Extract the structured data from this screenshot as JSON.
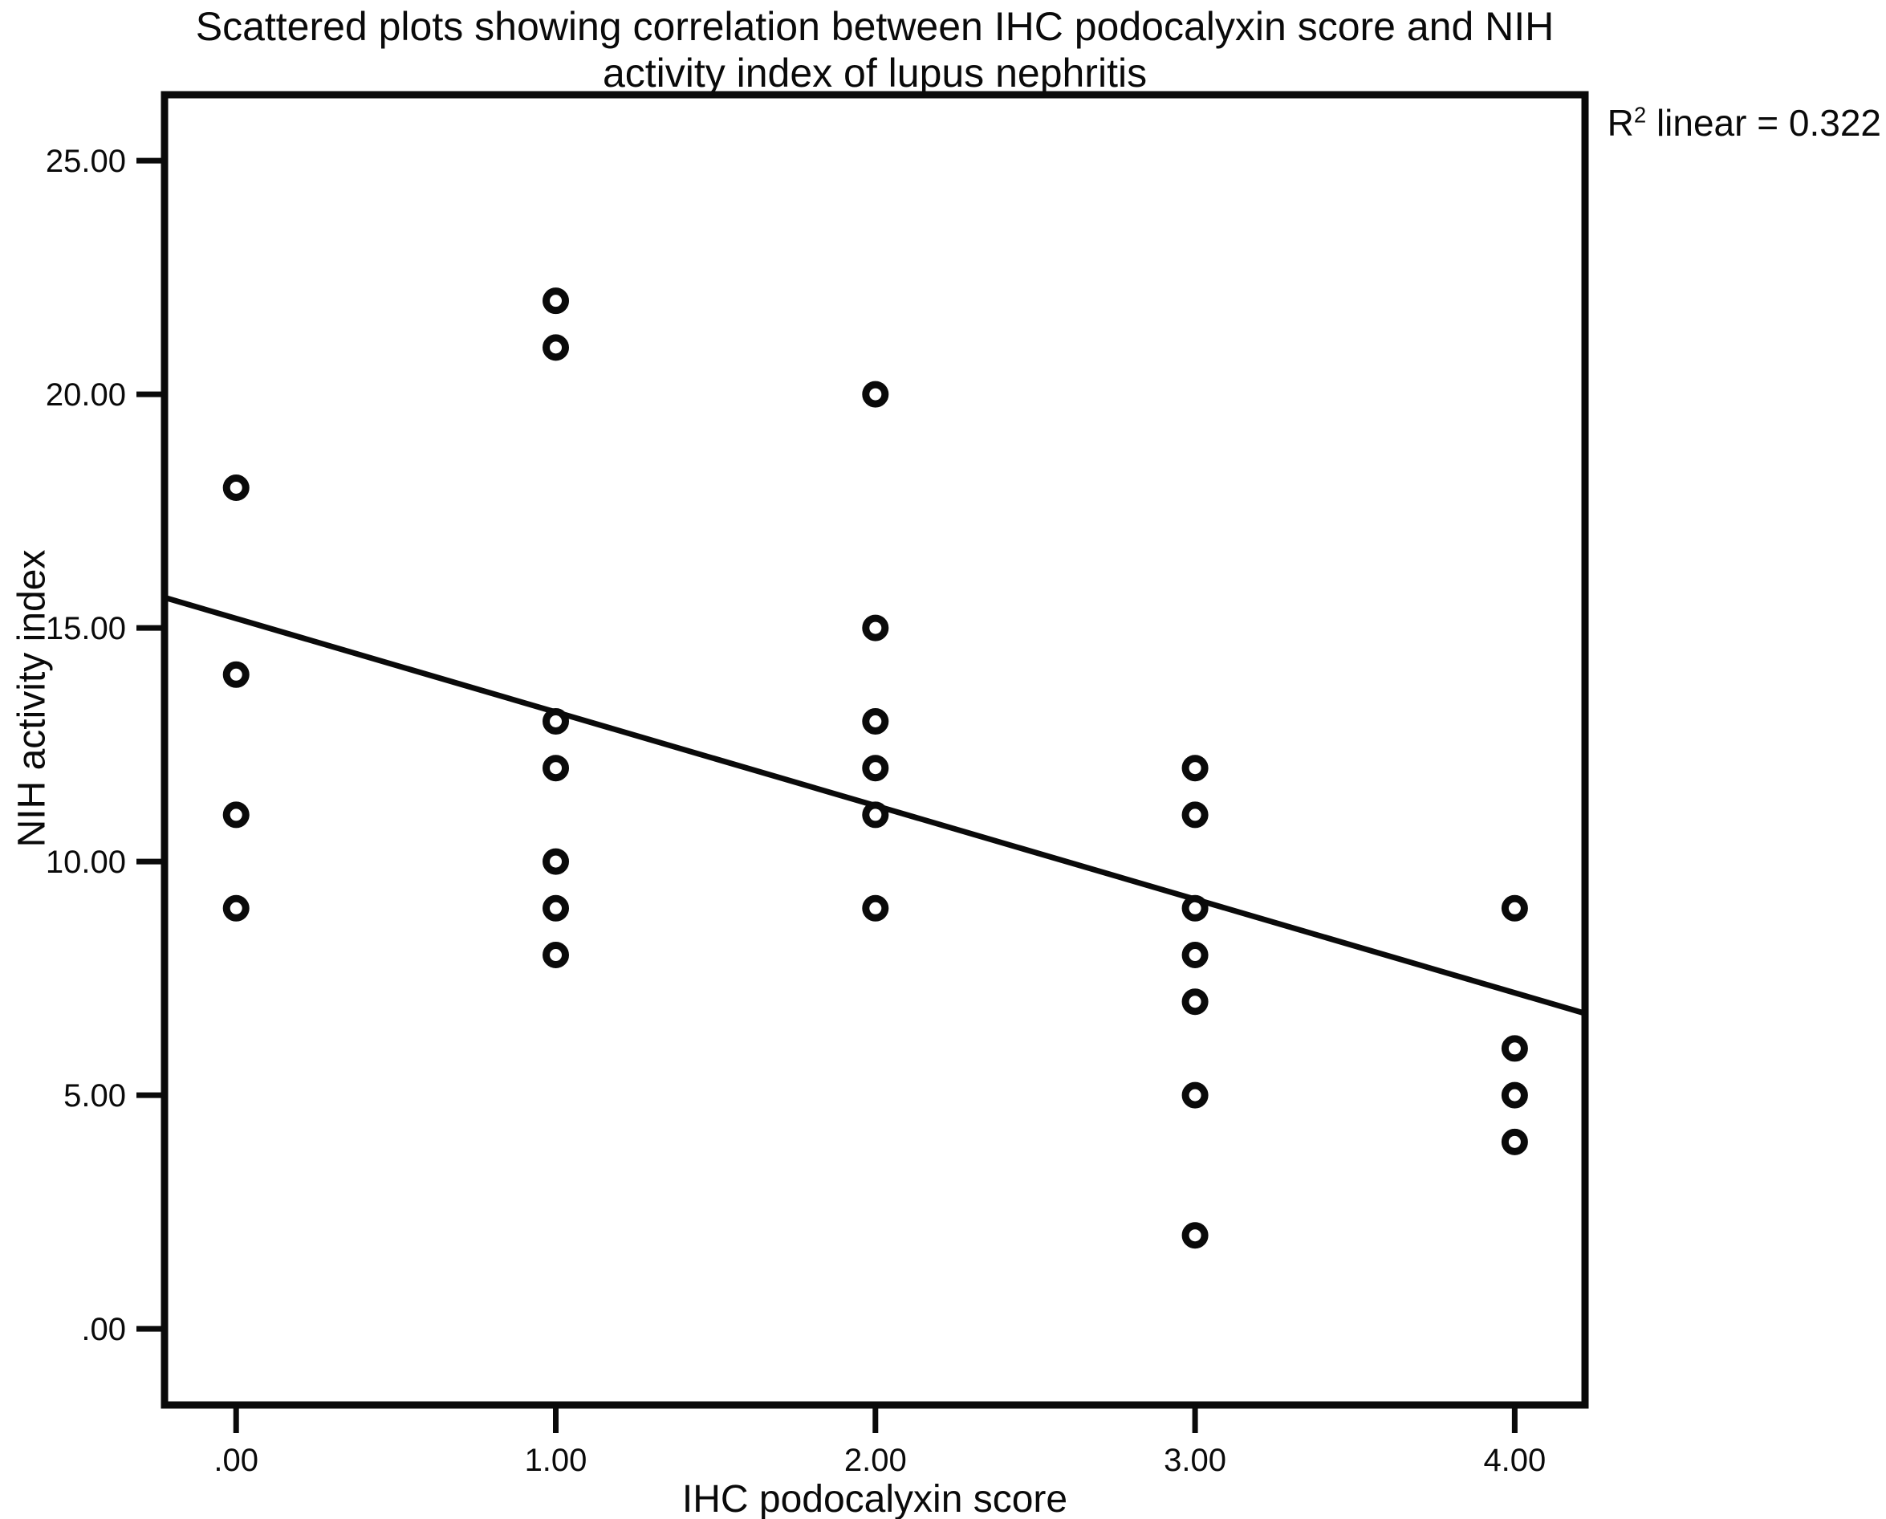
{
  "figure": {
    "title_line1": "Scattered plots showing correlation between IHC podocalyxin score and NIH",
    "title_line2": "activity index of lupus nephritis",
    "annotation": {
      "base": "R",
      "exponent": "2",
      "rest": " linear = 0.322"
    },
    "xlabel": "IHC podocalyxin score",
    "ylabel": "NIH activity index"
  },
  "layout_colors": {
    "ink": "#0a0a0a",
    "background": "#ffffff"
  },
  "chart_data": {
    "type": "scatter",
    "title": "Scattered plots showing correlation between IHC podocalyxin score and NIH activity index of lupus nephritis",
    "xlabel": "IHC podocalyxin score",
    "ylabel": "NIH activity index",
    "annotation_text": "R² linear = 0.322",
    "marker": "open-circle",
    "grid": false,
    "legend": "none",
    "xlim": [
      -0.224,
      4.22
    ],
    "ylim": [
      -1.63,
      26.41
    ],
    "xticks": [
      {
        "v": 0,
        "label": ".00"
      },
      {
        "v": 1,
        "label": "1.00"
      },
      {
        "v": 2,
        "label": "2.00"
      },
      {
        "v": 3,
        "label": "3.00"
      },
      {
        "v": 4,
        "label": "4.00"
      }
    ],
    "yticks": [
      {
        "v": 0,
        "label": ".00"
      },
      {
        "v": 5,
        "label": "5.00"
      },
      {
        "v": 10,
        "label": "10.00"
      },
      {
        "v": 15,
        "label": "15.00"
      },
      {
        "v": 20,
        "label": "20.00"
      },
      {
        "v": 25,
        "label": "25.00"
      }
    ],
    "points": [
      {
        "x": 0,
        "y": 18
      },
      {
        "x": 0,
        "y": 14
      },
      {
        "x": 0,
        "y": 11
      },
      {
        "x": 0,
        "y": 9
      },
      {
        "x": 1,
        "y": 22
      },
      {
        "x": 1,
        "y": 21
      },
      {
        "x": 1,
        "y": 13
      },
      {
        "x": 1,
        "y": 12
      },
      {
        "x": 1,
        "y": 10
      },
      {
        "x": 1,
        "y": 9
      },
      {
        "x": 1,
        "y": 8
      },
      {
        "x": 2,
        "y": 20
      },
      {
        "x": 2,
        "y": 15
      },
      {
        "x": 2,
        "y": 13
      },
      {
        "x": 2,
        "y": 12
      },
      {
        "x": 2,
        "y": 11
      },
      {
        "x": 2,
        "y": 9
      },
      {
        "x": 3,
        "y": 12
      },
      {
        "x": 3,
        "y": 11
      },
      {
        "x": 3,
        "y": 9
      },
      {
        "x": 3,
        "y": 8
      },
      {
        "x": 3,
        "y": 7
      },
      {
        "x": 3,
        "y": 5
      },
      {
        "x": 3,
        "y": 2
      },
      {
        "x": 4,
        "y": 9
      },
      {
        "x": 4,
        "y": 6
      },
      {
        "x": 4,
        "y": 5
      },
      {
        "x": 4,
        "y": 4
      }
    ],
    "trendline": {
      "x1": -0.224,
      "y1": 15.65,
      "x2": 4.22,
      "y2": 6.75,
      "r_squared": 0.322
    }
  }
}
